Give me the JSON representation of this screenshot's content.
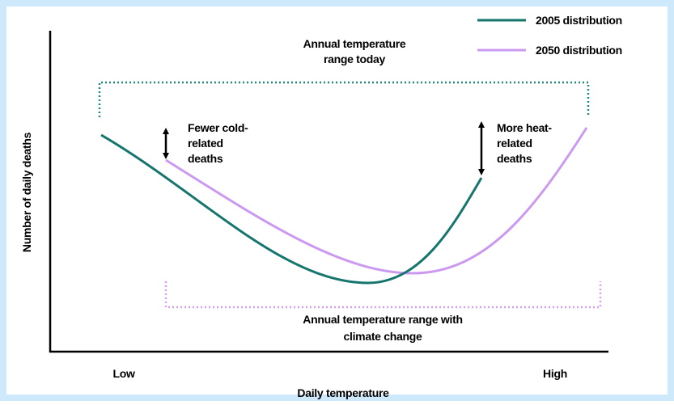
{
  "legend": {
    "items": [
      "2005 distribution",
      "2050 distribution"
    ]
  },
  "annotations": {
    "range_today": [
      "Annual temperature",
      "range today"
    ],
    "cold": [
      "Fewer cold-",
      "related",
      "deaths"
    ],
    "heat": [
      "More heat-",
      "related",
      "deaths"
    ],
    "range_future": [
      "Annual temperature range with",
      "climate change"
    ]
  },
  "axes": {
    "y_label": "Number of daily deaths",
    "x_label": "Daily temperature",
    "x_low": "Low",
    "x_high": "High"
  }
}
